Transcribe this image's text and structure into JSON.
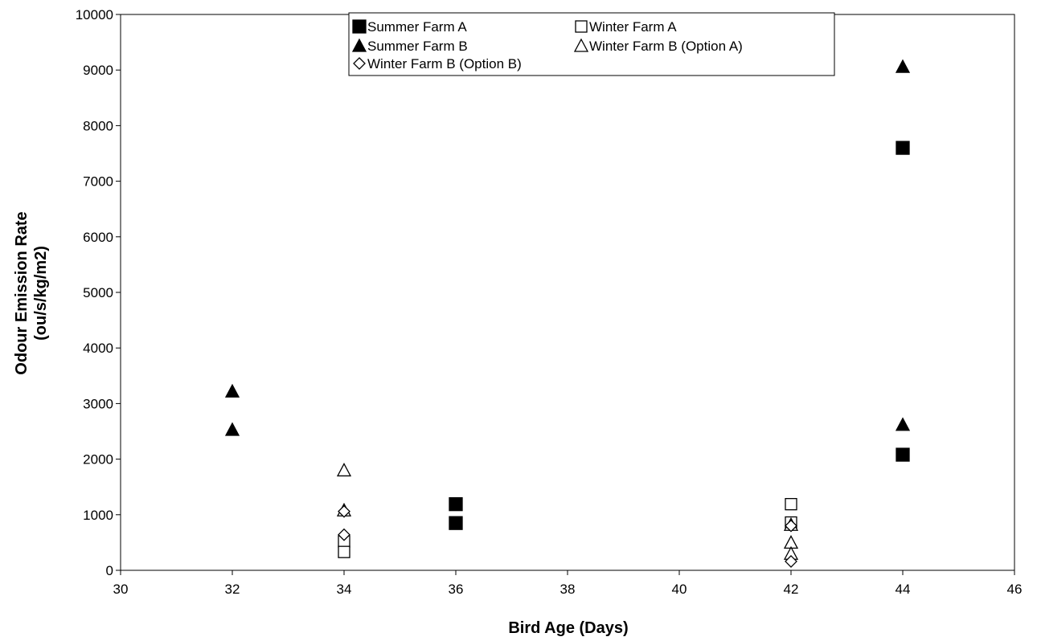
{
  "chart_data": {
    "type": "scatter",
    "title": "",
    "xlabel": "Bird Age (Days)",
    "ylabel_line1": "Odour Emission Rate",
    "ylabel_line2": "(ou/s/kg/m2)",
    "xlim": [
      30,
      46
    ],
    "ylim": [
      0,
      10000
    ],
    "xticks": [
      30,
      32,
      34,
      36,
      38,
      40,
      42,
      44,
      46
    ],
    "yticks": [
      0,
      1000,
      2000,
      3000,
      4000,
      5000,
      6000,
      7000,
      8000,
      9000,
      10000
    ],
    "grid": false,
    "legend_position": "top",
    "series": [
      {
        "name": "Summer Farm A",
        "marker": "square-filled",
        "points": [
          [
            36,
            1190
          ],
          [
            36,
            850
          ],
          [
            44,
            7600
          ],
          [
            44,
            2080
          ]
        ]
      },
      {
        "name": "Winter Farm A",
        "marker": "square-open",
        "points": [
          [
            34,
            520
          ],
          [
            34,
            330
          ],
          [
            42,
            1190
          ],
          [
            42,
            860
          ]
        ]
      },
      {
        "name": "Summer Farm B",
        "marker": "triangle-filled",
        "points": [
          [
            32,
            3220
          ],
          [
            32,
            2530
          ],
          [
            44,
            9060
          ],
          [
            44,
            2620
          ]
        ]
      },
      {
        "name": "Winter Farm B (Option A)",
        "marker": "triangle-open",
        "points": [
          [
            34,
            1800
          ],
          [
            34,
            1080
          ],
          [
            42,
            820
          ],
          [
            42,
            500
          ],
          [
            42,
            300
          ]
        ]
      },
      {
        "name": "Winter Farm B (Option B)",
        "marker": "diamond-open",
        "points": [
          [
            34,
            1060
          ],
          [
            34,
            640
          ],
          [
            42,
            800
          ],
          [
            42,
            160
          ]
        ]
      }
    ]
  }
}
